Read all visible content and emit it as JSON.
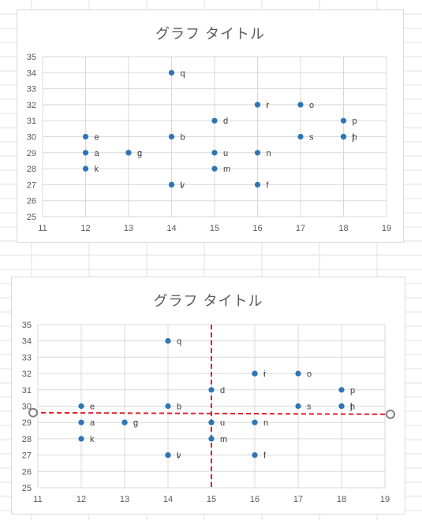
{
  "chart_data": [
    {
      "type": "scatter",
      "title": "グラフ タイトル",
      "xlim": [
        11,
        19
      ],
      "ylim": [
        25,
        35
      ],
      "x_ticks": [
        "11",
        "12",
        "13",
        "14",
        "15",
        "16",
        "17",
        "18",
        "19"
      ],
      "y_ticks": [
        "25",
        "26",
        "27",
        "28",
        "29",
        "30",
        "31",
        "32",
        "33",
        "34",
        "35"
      ],
      "grid": true,
      "legend": "none",
      "point_color": "#2e75b6",
      "points": [
        {
          "x": 12,
          "y": 29,
          "label": "a"
        },
        {
          "x": 14,
          "y": 30,
          "label": "b"
        },
        {
          "x": 13,
          "y": 29,
          "label": "g"
        },
        {
          "x": 15,
          "y": 31,
          "label": "d"
        },
        {
          "x": 12,
          "y": 30,
          "label": "e"
        },
        {
          "x": 16,
          "y": 27,
          "label": "f"
        },
        {
          "x": 13,
          "y": 29,
          "label": "c"
        },
        {
          "x": 18,
          "y": 30,
          "label": "h"
        },
        {
          "x": 16,
          "y": 32,
          "label": "i"
        },
        {
          "x": 18,
          "y": 30,
          "label": "j"
        },
        {
          "x": 12,
          "y": 28,
          "label": "k"
        },
        {
          "x": 14,
          "y": 27,
          "label": "l"
        },
        {
          "x": 15,
          "y": 28,
          "label": "m"
        },
        {
          "x": 16,
          "y": 29,
          "label": "n"
        },
        {
          "x": 17,
          "y": 32,
          "label": "o"
        },
        {
          "x": 18,
          "y": 31,
          "label": "p"
        },
        {
          "x": 14,
          "y": 34,
          "label": "q"
        },
        {
          "x": 16,
          "y": 32,
          "label": "r"
        },
        {
          "x": 17,
          "y": 30,
          "label": "s"
        },
        {
          "x": 18,
          "y": 30,
          "label": "t"
        },
        {
          "x": 15,
          "y": 29,
          "label": "u"
        },
        {
          "x": 14,
          "y": 27,
          "label": "v"
        }
      ]
    },
    {
      "type": "scatter",
      "title": "グラフ タイトル",
      "xlim": [
        11,
        19
      ],
      "ylim": [
        25,
        35
      ],
      "x_ticks": [
        "11",
        "12",
        "13",
        "14",
        "15",
        "16",
        "17",
        "18",
        "19"
      ],
      "y_ticks": [
        "25",
        "26",
        "27",
        "28",
        "29",
        "30",
        "31",
        "32",
        "33",
        "34",
        "35"
      ],
      "grid": true,
      "legend": "none",
      "point_color": "#2e75b6",
      "guide_color": "#e0202c",
      "vertical_guide_x": 15,
      "horizontal_guide": {
        "x1": 11,
        "y1": 29.6,
        "x2": 19,
        "y2": 29.5
      },
      "points": [
        {
          "x": 12,
          "y": 29,
          "label": "a"
        },
        {
          "x": 14,
          "y": 30,
          "label": "b"
        },
        {
          "x": 13,
          "y": 29,
          "label": "g"
        },
        {
          "x": 15,
          "y": 31,
          "label": "d"
        },
        {
          "x": 12,
          "y": 30,
          "label": "e"
        },
        {
          "x": 16,
          "y": 27,
          "label": "f"
        },
        {
          "x": 13,
          "y": 29,
          "label": "c"
        },
        {
          "x": 18,
          "y": 30,
          "label": "h"
        },
        {
          "x": 16,
          "y": 32,
          "label": "i"
        },
        {
          "x": 18,
          "y": 30,
          "label": "j"
        },
        {
          "x": 12,
          "y": 28,
          "label": "k"
        },
        {
          "x": 14,
          "y": 27,
          "label": "l"
        },
        {
          "x": 15,
          "y": 28,
          "label": "m"
        },
        {
          "x": 16,
          "y": 29,
          "label": "n"
        },
        {
          "x": 17,
          "y": 32,
          "label": "o"
        },
        {
          "x": 18,
          "y": 31,
          "label": "p"
        },
        {
          "x": 14,
          "y": 34,
          "label": "q"
        },
        {
          "x": 16,
          "y": 32,
          "label": "r"
        },
        {
          "x": 17,
          "y": 30,
          "label": "s"
        },
        {
          "x": 18,
          "y": 30,
          "label": "t"
        },
        {
          "x": 15,
          "y": 29,
          "label": "u"
        },
        {
          "x": 14,
          "y": 27,
          "label": "v"
        }
      ]
    }
  ]
}
